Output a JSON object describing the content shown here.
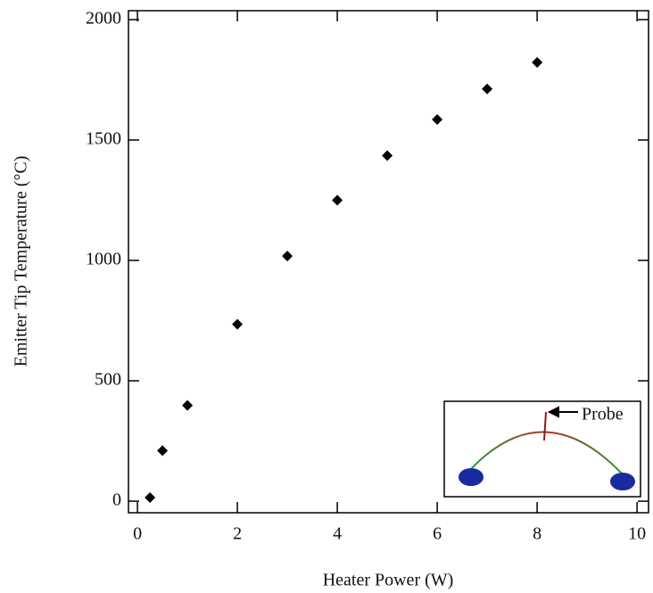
{
  "chart_data": {
    "type": "scatter",
    "x_label": "Heater Power (W)",
    "y_label": "Emitter Tip Temperature (°C)",
    "annotation": "Probe",
    "x": [
      0.25,
      0.5,
      1,
      2,
      3,
      4,
      5,
      6,
      7,
      8
    ],
    "series": [
      {
        "color": "#000000",
        "values": [
          15,
          210,
          398,
          735,
          1018,
          1250,
          1435,
          1585,
          1712,
          1822
        ]
      }
    ],
    "xlim": [
      -0.18,
      10.23
    ],
    "xticks": [
      0,
      2,
      4,
      6,
      8,
      10
    ],
    "ylim": [
      -48,
      2037
    ],
    "yticks": [
      0,
      500,
      1000,
      1500,
      2000
    ]
  }
}
